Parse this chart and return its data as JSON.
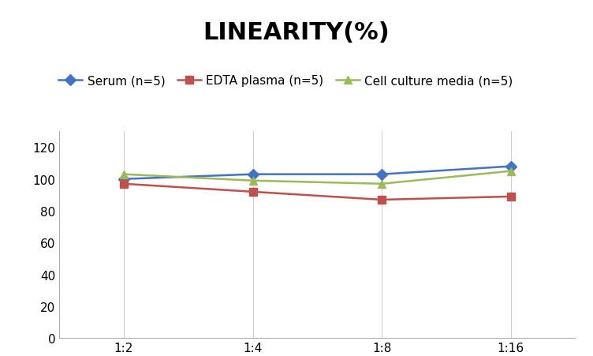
{
  "title": "LINEARITY(%)",
  "x_labels": [
    "1:2",
    "1:4",
    "1:8",
    "1:16"
  ],
  "x_positions": [
    0,
    1,
    2,
    3
  ],
  "series": [
    {
      "label": "Serum (n=5)",
      "values": [
        100,
        103,
        103,
        108
      ],
      "color": "#4472C4",
      "marker": "D",
      "marker_size": 7,
      "linewidth": 1.8
    },
    {
      "label": "EDTA plasma (n=5)",
      "values": [
        97,
        92,
        87,
        89
      ],
      "color": "#C0504D",
      "marker": "s",
      "marker_size": 7,
      "linewidth": 1.8
    },
    {
      "label": "Cell culture media (n=5)",
      "values": [
        103,
        99,
        97,
        105
      ],
      "color": "#9BBB59",
      "marker": "^",
      "marker_size": 7,
      "linewidth": 1.8
    }
  ],
  "ylim": [
    0,
    130
  ],
  "yticks": [
    0,
    20,
    40,
    60,
    80,
    100,
    120
  ],
  "background_color": "#ffffff",
  "grid_color": "#d0d0d0",
  "title_fontsize": 22,
  "legend_fontsize": 11,
  "tick_fontsize": 11
}
